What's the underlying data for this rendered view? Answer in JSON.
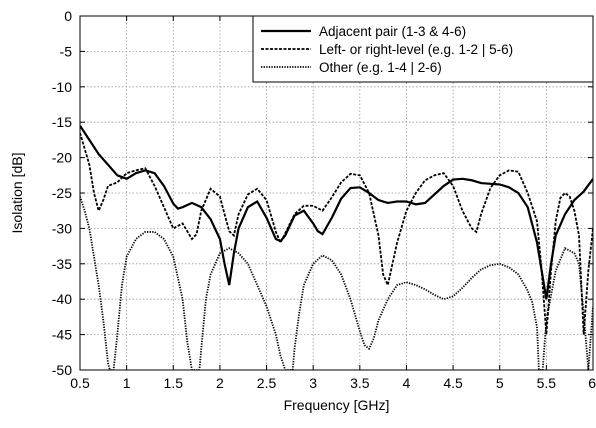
{
  "chart_data": {
    "type": "line",
    "title": "",
    "xlabel": "Frequency [GHz]",
    "ylabel": "Isolation [dB]",
    "xlim": [
      0.5,
      6
    ],
    "ylim": [
      -50,
      0
    ],
    "xticks": [
      0.5,
      1,
      1.5,
      2,
      2.5,
      3,
      3.5,
      4,
      4.5,
      5,
      5.5,
      6
    ],
    "xtick_labels": [
      "0.5",
      "1",
      "1.5",
      "2",
      "2.5",
      "3",
      "3.5",
      "4",
      "4.5",
      "5",
      "5.5",
      "6"
    ],
    "yticks": [
      0,
      -5,
      -10,
      -15,
      -20,
      -25,
      -30,
      -35,
      -40,
      -45,
      -50
    ],
    "ytick_labels": [
      "0",
      "-5",
      "-10",
      "-15",
      "-20",
      "-25",
      "-30",
      "-35",
      "-40",
      "-45",
      "-50"
    ],
    "grid": true,
    "legend_position": "top-right",
    "series": [
      {
        "name": "Adjacent pair (1-3 & 4-6)",
        "style": "solid",
        "color": "#000000",
        "x": [
          0.5,
          0.6,
          0.7,
          0.8,
          0.9,
          1.0,
          1.1,
          1.2,
          1.3,
          1.4,
          1.5,
          1.55,
          1.6,
          1.7,
          1.8,
          1.9,
          2.0,
          2.05,
          2.1,
          2.15,
          2.2,
          2.3,
          2.4,
          2.5,
          2.6,
          2.65,
          2.7,
          2.8,
          2.9,
          3.0,
          3.05,
          3.1,
          3.2,
          3.3,
          3.4,
          3.5,
          3.6,
          3.7,
          3.8,
          3.9,
          4.0,
          4.1,
          4.2,
          4.3,
          4.4,
          4.5,
          4.6,
          4.7,
          4.8,
          4.9,
          5.0,
          5.1,
          5.2,
          5.3,
          5.4,
          5.45,
          5.5,
          5.55,
          5.6,
          5.7,
          5.8,
          5.9,
          6.0
        ],
        "y": [
          -15.5,
          -17.5,
          -19.5,
          -21,
          -22.5,
          -23,
          -22.2,
          -21.8,
          -22.2,
          -24,
          -26.5,
          -27.2,
          -27,
          -26.4,
          -27,
          -28.7,
          -31.5,
          -35,
          -38,
          -33.5,
          -30,
          -27,
          -26.2,
          -28.5,
          -31.5,
          -31.8,
          -31,
          -28.2,
          -27.5,
          -29.3,
          -30.4,
          -30.8,
          -28.5,
          -25.8,
          -24.3,
          -24.2,
          -25,
          -26,
          -26.4,
          -26.2,
          -26.2,
          -26.6,
          -26.4,
          -25.2,
          -24,
          -23.1,
          -23,
          -23.2,
          -23.6,
          -23.7,
          -23.8,
          -24.2,
          -25,
          -27,
          -32,
          -36,
          -40,
          -35,
          -31,
          -28,
          -26,
          -24.8,
          -23
        ]
      },
      {
        "name": "Left- or right-level (e.g. 1-2 | 5-6)",
        "style": "dashed",
        "color": "#000000",
        "x": [
          0.5,
          0.6,
          0.65,
          0.7,
          0.75,
          0.8,
          0.9,
          1.0,
          1.1,
          1.2,
          1.3,
          1.4,
          1.5,
          1.6,
          1.7,
          1.75,
          1.8,
          1.9,
          2.0,
          2.05,
          2.1,
          2.15,
          2.2,
          2.3,
          2.4,
          2.5,
          2.6,
          2.65,
          2.7,
          2.8,
          2.9,
          3.0,
          3.1,
          3.2,
          3.3,
          3.4,
          3.5,
          3.6,
          3.7,
          3.75,
          3.8,
          3.9,
          4.0,
          4.1,
          4.2,
          4.3,
          4.4,
          4.5,
          4.6,
          4.7,
          4.75,
          4.8,
          4.9,
          5.0,
          5.1,
          5.2,
          5.3,
          5.4,
          5.45,
          5.5,
          5.55,
          5.6,
          5.65,
          5.7,
          5.75,
          5.8,
          5.85,
          5.9,
          5.95,
          6.0
        ],
        "y": [
          -16.5,
          -21,
          -25,
          -27.5,
          -26,
          -24,
          -23.5,
          -22.2,
          -21.8,
          -21.5,
          -24,
          -27,
          -30,
          -29.3,
          -31.5,
          -30.8,
          -27.5,
          -24.4,
          -25.5,
          -28,
          -30.4,
          -31,
          -28,
          -25.2,
          -24.4,
          -26,
          -30.5,
          -32,
          -30.7,
          -28,
          -26.8,
          -26.8,
          -27.5,
          -25.6,
          -23.5,
          -22.3,
          -22.5,
          -25,
          -31,
          -36.5,
          -38,
          -32,
          -27.5,
          -25,
          -23.2,
          -22.5,
          -22.2,
          -24,
          -27.5,
          -30,
          -30.5,
          -28,
          -24.3,
          -22.5,
          -21.8,
          -22,
          -25,
          -29,
          -36,
          -45,
          -36,
          -29,
          -25.7,
          -25,
          -25.5,
          -27.5,
          -31,
          -45,
          -36,
          -30
        ]
      },
      {
        "name": "Other (e.g. 1-4 | 2-6)",
        "style": "dotted",
        "color": "#000000",
        "x": [
          0.5,
          0.55,
          0.6,
          0.65,
          0.7,
          0.75,
          0.8,
          0.82,
          0.84,
          0.86,
          0.9,
          0.95,
          1.0,
          1.1,
          1.2,
          1.3,
          1.4,
          1.5,
          1.6,
          1.65,
          1.7,
          1.72,
          1.74,
          1.76,
          1.78,
          1.8,
          1.85,
          1.9,
          2.0,
          2.1,
          2.2,
          2.3,
          2.4,
          2.5,
          2.6,
          2.65,
          2.7,
          2.72,
          2.74,
          2.76,
          2.78,
          2.8,
          2.85,
          2.9,
          3.0,
          3.1,
          3.2,
          3.3,
          3.4,
          3.5,
          3.55,
          3.6,
          3.65,
          3.7,
          3.8,
          3.9,
          4.0,
          4.1,
          4.2,
          4.3,
          4.4,
          4.5,
          4.6,
          4.7,
          4.8,
          4.9,
          5.0,
          5.1,
          5.2,
          5.3,
          5.35,
          5.4,
          5.42,
          5.44,
          5.46,
          5.5,
          5.6,
          5.7,
          5.8,
          5.85,
          5.9,
          5.95,
          6.0
        ],
        "y": [
          -25.5,
          -27.5,
          -30,
          -34,
          -38,
          -43,
          -49,
          -50,
          -50,
          -50,
          -45,
          -38,
          -34,
          -31.5,
          -30.5,
          -30.5,
          -31.5,
          -34,
          -40,
          -46,
          -50,
          -50,
          -50,
          -50,
          -50,
          -47,
          -40,
          -36.5,
          -33.5,
          -32.8,
          -33.5,
          -35,
          -38,
          -41,
          -45,
          -48,
          -50,
          -50,
          -50,
          -50,
          -50,
          -47,
          -42,
          -38,
          -35,
          -33.8,
          -34.5,
          -36.5,
          -40,
          -44.5,
          -46.5,
          -47,
          -45.5,
          -43,
          -40,
          -38,
          -37.6,
          -38,
          -38.6,
          -39.4,
          -40,
          -39.6,
          -38.4,
          -37,
          -35.8,
          -35.2,
          -35,
          -35.5,
          -36.5,
          -38.8,
          -40.5,
          -44,
          -50,
          -50,
          -50,
          -43,
          -36,
          -32.8,
          -33.5,
          -35,
          -42,
          -50,
          -41
        ]
      }
    ]
  }
}
